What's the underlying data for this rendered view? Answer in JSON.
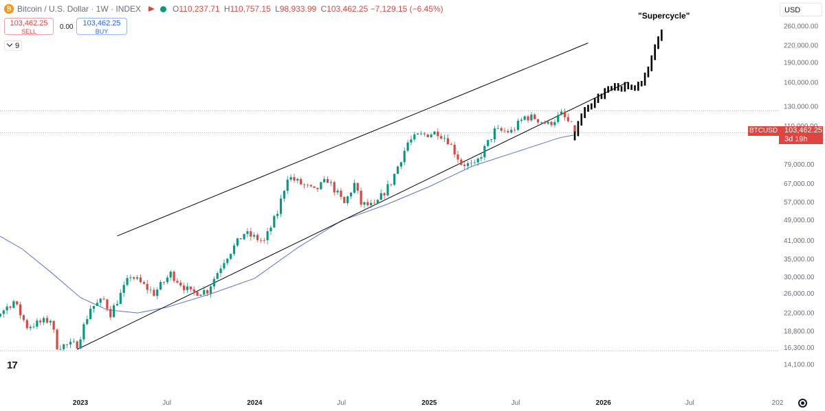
{
  "header": {
    "symbol": "Bitcoin / U.S. Dollar · 1W · INDEX",
    "ohlc": [
      {
        "key": "O",
        "value": "110,237.71"
      },
      {
        "key": "H",
        "value": "110,757.15"
      },
      {
        "key": "L",
        "value": "98,933.99"
      },
      {
        "key": "C",
        "value": "103,462.25"
      },
      {
        "key": "",
        "value": "−7,129.15 (−6.45%)"
      }
    ]
  },
  "trade": {
    "sell_price": "103,462.25",
    "sell_label": "SELL",
    "buy_price": "103,462.25",
    "buy_label": "BUY",
    "spread": "0.00"
  },
  "indicator_count": "9",
  "currency_select": "USD",
  "annotation": "\"Supercycle\"",
  "price_tag": {
    "symbol": "BTCUSD",
    "price": "103,462.25",
    "countdown": "3d 19h"
  },
  "colors": {
    "up": "#089981",
    "down": "#e0443f",
    "ma": "#5b6fd6",
    "projection": "#000000",
    "channel": "#000000"
  },
  "chart_data": {
    "type": "candlestick",
    "title": "Bitcoin / U.S. Dollar · 1W · INDEX",
    "xlabel": "",
    "ylabel": "",
    "y_scale": "log",
    "x_range": [
      "2022-05-01",
      "2027-01-01"
    ],
    "y_range": [
      13500,
      270000
    ],
    "x_ticks": [
      {
        "date": "2022-07-01",
        "label": "Jul"
      },
      {
        "date": "2023-01-01",
        "label": "2023"
      },
      {
        "date": "2023-07-01",
        "label": "Jul"
      },
      {
        "date": "2024-01-01",
        "label": "2024"
      },
      {
        "date": "2024-07-01",
        "label": "Jul"
      },
      {
        "date": "2025-01-01",
        "label": "2025"
      },
      {
        "date": "2025-07-01",
        "label": "Jul"
      },
      {
        "date": "2026-01-01",
        "label": "2026"
      },
      {
        "date": "2026-07-01",
        "label": "Jul"
      },
      {
        "date": "2027-01-01",
        "label": "202"
      }
    ],
    "y_ticks": [
      {
        "value": 260000,
        "label": "260,000.00"
      },
      {
        "value": 220000,
        "label": "220,000.00"
      },
      {
        "value": 190000,
        "label": "190,000.00"
      },
      {
        "value": 160000,
        "label": "160,000.00"
      },
      {
        "value": 130000,
        "label": "130,000.00"
      },
      {
        "value": 110000,
        "label": "110,000.00"
      },
      {
        "value": 79000,
        "label": "79,000.00"
      },
      {
        "value": 67000,
        "label": "67,000.00"
      },
      {
        "value": 57000,
        "label": "57,000.00"
      },
      {
        "value": 49000,
        "label": "49,000.00"
      },
      {
        "value": 41000,
        "label": "41,000.00"
      },
      {
        "value": 35000,
        "label": "35,000.00"
      },
      {
        "value": 30000,
        "label": "30,000.00"
      },
      {
        "value": 26000,
        "label": "26,000.00"
      },
      {
        "value": 22000,
        "label": "22,000.00"
      },
      {
        "value": 18800,
        "label": "18,800.00"
      },
      {
        "value": 16300,
        "label": "16,300.00"
      },
      {
        "value": 14100,
        "label": "14,100.00"
      }
    ],
    "horizontal_levels": [
      125000,
      103462.25,
      15800
    ],
    "price_keypoints": [
      [
        "2022-05-01",
        38000
      ],
      [
        "2022-05-22",
        46500
      ],
      [
        "2022-06-12",
        33000
      ],
      [
        "2022-06-26",
        20500
      ],
      [
        "2022-07-24",
        22500
      ],
      [
        "2022-08-14",
        24200
      ],
      [
        "2022-09-11",
        19500
      ],
      [
        "2022-10-30",
        20700
      ],
      [
        "2022-11-13",
        16500
      ],
      [
        "2022-12-25",
        16700
      ],
      [
        "2023-01-22",
        22900
      ],
      [
        "2023-02-19",
        24500
      ],
      [
        "2023-03-05",
        21800
      ],
      [
        "2023-04-16",
        30300
      ],
      [
        "2023-06-04",
        25900
      ],
      [
        "2023-07-09",
        30700
      ],
      [
        "2023-08-20",
        26000
      ],
      [
        "2023-09-24",
        26600
      ],
      [
        "2023-10-29",
        34500
      ],
      [
        "2023-12-10",
        43500
      ],
      [
        "2024-01-21",
        40500
      ],
      [
        "2024-02-18",
        52000
      ],
      [
        "2024-03-10",
        71000
      ],
      [
        "2024-05-05",
        62500
      ],
      [
        "2024-06-02",
        69000
      ],
      [
        "2024-07-07",
        56000
      ],
      [
        "2024-07-28",
        66500
      ],
      [
        "2024-08-11",
        56000
      ],
      [
        "2024-09-08",
        54800
      ],
      [
        "2024-10-13",
        67500
      ],
      [
        "2024-11-17",
        95000
      ],
      [
        "2024-12-08",
        100500
      ],
      [
        "2025-01-19",
        104000
      ],
      [
        "2025-02-09",
        97000
      ],
      [
        "2025-03-09",
        79500
      ],
      [
        "2025-04-06",
        77500
      ],
      [
        "2025-05-18",
        105000
      ],
      [
        "2025-06-22",
        104500
      ],
      [
        "2025-07-20",
        118500
      ],
      [
        "2025-08-10",
        117500
      ],
      [
        "2025-09-07",
        111000
      ],
      [
        "2025-10-05",
        121000
      ],
      [
        "2025-10-26",
        110000
      ],
      [
        "2025-11-02",
        103462
      ]
    ],
    "ma_keypoints": [
      [
        "2022-05-01",
        47500
      ],
      [
        "2022-07-01",
        44000
      ],
      [
        "2022-09-01",
        38000
      ],
      [
        "2022-11-01",
        31000
      ],
      [
        "2023-01-01",
        25000
      ],
      [
        "2023-02-26",
        22500
      ],
      [
        "2023-05-01",
        21900
      ],
      [
        "2023-07-01",
        23000
      ],
      [
        "2023-10-01",
        25800
      ],
      [
        "2024-01-01",
        29500
      ],
      [
        "2024-04-01",
        38500
      ],
      [
        "2024-07-01",
        48500
      ],
      [
        "2024-10-01",
        55500
      ],
      [
        "2025-01-01",
        65000
      ],
      [
        "2025-04-01",
        77500
      ],
      [
        "2025-07-01",
        87500
      ],
      [
        "2025-10-01",
        99000
      ],
      [
        "2025-11-02",
        101500
      ]
    ],
    "channel_lines": [
      [
        [
          "2023-03-19",
          42500
        ],
        [
          "2025-11-30",
          224000
        ]
      ],
      [
        [
          "2022-12-25",
          16000
        ],
        [
          "2026-02-21",
          160000
        ]
      ]
    ],
    "projection_keypoints": [
      [
        "2025-11-02",
        103462
      ],
      [
        "2025-11-23",
        125000
      ],
      [
        "2025-12-21",
        140000
      ],
      [
        "2026-01-11",
        150000
      ],
      [
        "2026-02-15",
        155000
      ],
      [
        "2026-03-08",
        150000
      ],
      [
        "2026-04-05",
        175000
      ],
      [
        "2026-04-19",
        215000
      ],
      [
        "2026-05-03",
        250000
      ]
    ]
  }
}
